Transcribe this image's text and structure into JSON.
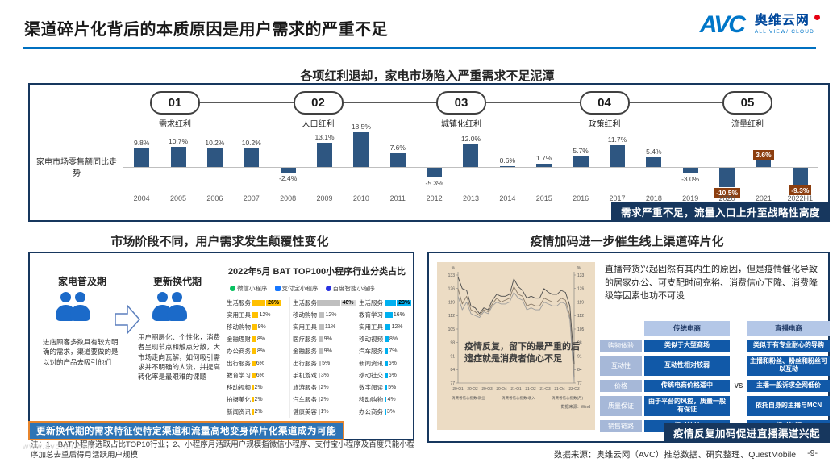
{
  "header": {
    "title": "渠道碎片化背后的本质原因是用户需求的严重不足",
    "logo": {
      "brand": "AVC",
      "name": "奥维云网",
      "tagline": "ALL VIEW/ CLOUD"
    }
  },
  "top_section": {
    "subtitle": "各项红利退却，家电市场陷入严重需求不足泥潭",
    "stages": [
      {
        "num": "01",
        "label": "需求红利"
      },
      {
        "num": "02",
        "label": "人口红利"
      },
      {
        "num": "03",
        "label": "城镇化红利"
      },
      {
        "num": "04",
        "label": "政策红利"
      },
      {
        "num": "05",
        "label": "流量红利"
      }
    ],
    "banner": "需求严重不足，流量入口上升至战略性高度"
  },
  "left_section": {
    "subtitle": "市场阶段不同，用户需求发生颠覆性变化",
    "phase1": {
      "title": "家电普及期",
      "desc": "进店顾客多数具有较为明确的需求，渠道要做的是以对的产品去吸引他们"
    },
    "phase2": {
      "title": "更新换代期",
      "desc": "用户圈层化、个性化，消费者呈现节点和触点分散，大市场走向瓦解，如何吸引需求并不明确的人流，并提高转化率是最艰难的课题"
    },
    "miniapp": {
      "title": "2022年5月 BAT TOP100小程序行业分类占比",
      "legend": [
        {
          "label": "微信小程序",
          "color": "#07c160"
        },
        {
          "label": "支付宝小程序",
          "color": "#1677ff"
        },
        {
          "label": "百度智能小程序",
          "color": "#2932e1"
        }
      ],
      "columns": [
        {
          "name": "微信小程序",
          "bar_color": "#ffc000",
          "highlight_bg": "#ffc000",
          "rows": [
            [
              "生活服务",
              26
            ],
            [
              "实用工具",
              12
            ],
            [
              "移动购物",
              9
            ],
            [
              "金融理财",
              8
            ],
            [
              "办公商务",
              8
            ],
            [
              "出行服务",
              6
            ],
            [
              "教育学习",
              6
            ],
            [
              "移动视频",
              2
            ],
            [
              "拍摄美化",
              2
            ],
            [
              "新闻资讯",
              2
            ]
          ]
        },
        {
          "name": "支付宝小程序",
          "bar_color": "#bfbfbf",
          "highlight_bg": "#d9d9d9",
          "rows": [
            [
              "生活服务",
              46
            ],
            [
              "移动购物",
              12
            ],
            [
              "实用工具",
              11
            ],
            [
              "医疗服务",
              9
            ],
            [
              "金融服务",
              9
            ],
            [
              "出行服务",
              5
            ],
            [
              "手机游戏",
              3
            ],
            [
              "旅游服务",
              2
            ],
            [
              "汽车服务",
              2
            ],
            [
              "健康美容",
              1
            ]
          ]
        },
        {
          "name": "百度智能小程序",
          "bar_color": "#00b0f0",
          "highlight_bg": "#00b0f0",
          "rows": [
            [
              "生活服务",
              23
            ],
            [
              "教育学习",
              16
            ],
            [
              "实用工具",
              12
            ],
            [
              "移动视频",
              8
            ],
            [
              "汽车服务",
              7
            ],
            [
              "新闻资讯",
              6
            ],
            [
              "移动社交",
              6
            ],
            [
              "数字阅读",
              5
            ],
            [
              "移动购物",
              4
            ],
            [
              "办公商务",
              3
            ]
          ]
        }
      ]
    },
    "banner": "更新换代期的需求特征使特定渠道和流量高地变身碎片化渠道成为可能",
    "note": "注：1、BAT小程序选取占比TOP10行业；2、小程序月活跃用户规模指微信小程序、支付宝小程序及百度只能小程序加总去重后得月活跃用户规模"
  },
  "right_section": {
    "subtitle": "疫情加码进一步催生线上渠道碎片化",
    "paragraph": "直播带货兴起固然有其内生的原因，但是疫情催化导致的居家办公、可支配时间充裕、消费信心下降、消费降级等因素也功不可没",
    "table": {
      "headers": [
        "传统电商",
        "直播电商"
      ],
      "vs": "VS",
      "rows": [
        {
          "label": "购物体验",
          "a": "类似于大型商场",
          "b": "类似于有专业耐心的导购"
        },
        {
          "label": "互动性",
          "a": "互动性相对较弱",
          "b": "主播和粉丝、粉丝和粉丝可以互动"
        },
        {
          "label": "价格",
          "a": "传统电商价格适中",
          "b": "主播一般诉求全网低价"
        },
        {
          "label": "质量保证",
          "a": "由于平台的风控，质量一般有保证",
          "b": "依托自身的主播与MCN"
        },
        {
          "label": "销售链路",
          "a": "相对较长",
          "b": "相对较短"
        }
      ]
    },
    "banner": "疫情反复加码促进直播渠道兴起"
  },
  "footer": {
    "source": "数据来源：奥维云网（AVC）推总数据、研究整理、QuestMobile",
    "page": "-9-",
    "watermark": "www.avc-mr.com"
  },
  "chart_data": [
    {
      "type": "bar",
      "title": "各项红利退却，家电市场陷入严重需求不足泥潭",
      "ylabel": "家电市场零售额同比走势",
      "unit": "%",
      "categories": [
        "2004",
        "2005",
        "2006",
        "2007",
        "2008",
        "2009",
        "2010",
        "2011",
        "2012",
        "2013",
        "2014",
        "2015",
        "2016",
        "2017",
        "2018",
        "2019",
        "2020",
        "2021",
        "2022H1"
      ],
      "values": [
        9.8,
        10.7,
        10.2,
        10.2,
        -2.4,
        13.1,
        18.5,
        7.6,
        -5.3,
        12.0,
        0.6,
        1.7,
        5.7,
        11.7,
        5.4,
        -3.0,
        -10.5,
        3.6,
        -9.3
      ],
      "highlight_years": [
        "2020",
        "2021",
        "2022H1"
      ],
      "bar_color": "#2e5681",
      "highlight_label_color": "#8c3e0f"
    },
    {
      "type": "line",
      "ylim": [
        77,
        133
      ],
      "yticks": [
        77,
        84,
        91,
        98,
        105,
        112,
        119,
        126,
        133
      ],
      "y_unit": "%",
      "xticklabels": [
        "20-Q1",
        "20-Q2",
        "20-Q3",
        "20-Q4",
        "21-Q1",
        "21-Q2",
        "21-Q3",
        "21-Q4",
        "22-Q2"
      ],
      "legend_position": "bottom",
      "annotation": [
        "疫情反复，留下的最严重的后",
        "遗症就是消费者信心不足"
      ],
      "source": "数据来源：Wind",
      "series": [
        {
          "name": "消费者信心指数:就业",
          "color": "#4d4d4d",
          "values": [
            132,
            126,
            125,
            117,
            116,
            113,
            116,
            115,
            120,
            123,
            122,
            122,
            123,
            131,
            127,
            125,
            121,
            122,
            121,
            121,
            126,
            124,
            123,
            123,
            125,
            124,
            117,
            87
          ]
        },
        {
          "name": "消费者信心指数:收入",
          "color": "#8a7b69",
          "values": [
            126,
            118,
            122,
            115,
            114,
            112,
            115,
            114,
            118,
            121,
            119,
            120,
            121,
            127,
            123,
            122,
            117,
            118,
            117,
            117,
            121,
            120,
            119,
            119,
            121,
            120,
            112,
            80
          ]
        },
        {
          "name": "消费者信心指数(月)",
          "color": "#9c9c9c",
          "values": [
            122,
            115,
            119,
            113,
            112,
            111,
            114,
            113,
            117,
            119,
            118,
            118,
            119,
            124,
            121,
            120,
            115,
            116,
            115,
            115,
            119,
            118,
            117,
            117,
            119,
            118,
            110,
            78
          ]
        }
      ]
    }
  ]
}
